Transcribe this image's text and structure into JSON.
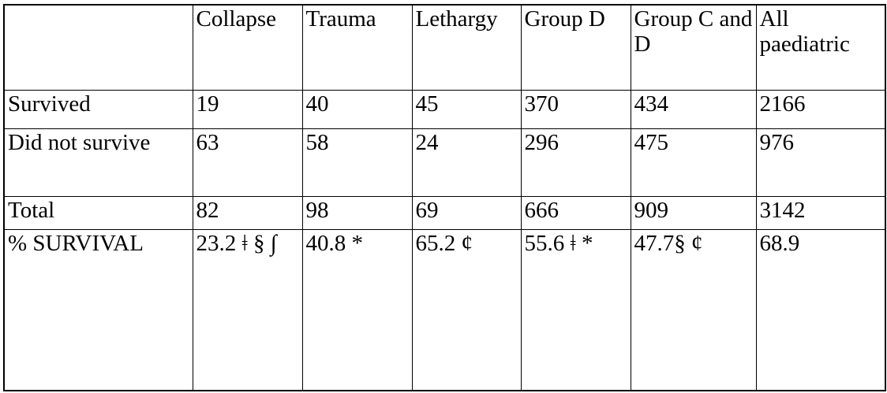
{
  "table": {
    "columns": [
      "",
      "Collapse",
      "Trauma",
      "Lethargy",
      "Group D",
      "Group C and D",
      "All paediatric"
    ],
    "rows": [
      {
        "label": "Survived",
        "values": [
          "19",
          "40",
          "45",
          "370",
          "434",
          "2166"
        ]
      },
      {
        "label": "Did not survive",
        "values": [
          "63",
          "58",
          "24",
          "296",
          "475",
          "976"
        ]
      },
      {
        "label": "Total",
        "values": [
          "82",
          "98",
          "69",
          "666",
          "909",
          "3142"
        ]
      },
      {
        "label": "% SURVIVAL",
        "values": [
          "23.2 ǂ § ∫",
          "40.8 *",
          "65.2 ¢",
          "55.6 ǂ *",
          "47.7§ ¢",
          "68.9"
        ]
      }
    ],
    "footnote_symbols": [
      "ǂ",
      "§",
      "∫",
      "*",
      "¢"
    ],
    "colors": {
      "border": "#000000",
      "text": "#000000",
      "background": "#ffffff"
    }
  }
}
